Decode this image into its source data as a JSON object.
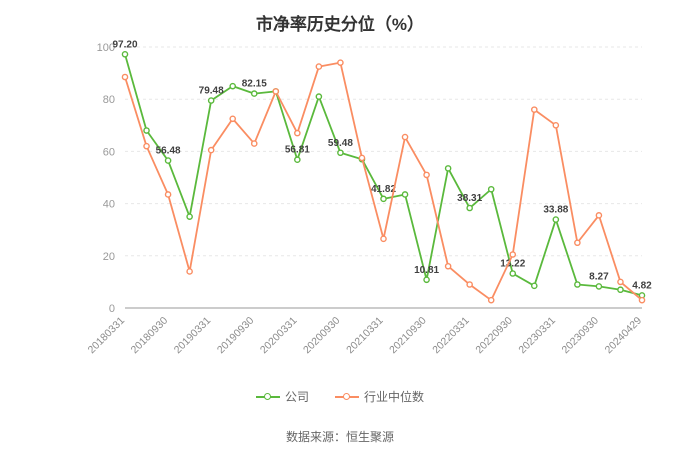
{
  "chart_data": {
    "type": "line",
    "title": "市净率历史分位（%）",
    "xlabel": "",
    "ylabel": "",
    "ylim": [
      0,
      100
    ],
    "y_ticks": [
      0,
      20,
      40,
      60,
      80,
      100
    ],
    "grid": true,
    "legend_position": "bottom",
    "categories": [
      "20180331",
      "",
      "20180930",
      "",
      "20190331",
      "",
      "20190930",
      "",
      "20200331",
      "",
      "20200930",
      "",
      "20210331",
      "",
      "20210930",
      "",
      "20220331",
      "",
      "20220930",
      "",
      "20230331",
      "",
      "20230930",
      "",
      "20240429"
    ],
    "series": [
      {
        "name": "公司",
        "color": "#5ab93c",
        "values": [
          97.2,
          68,
          56.48,
          35,
          79.48,
          85,
          82.15,
          83,
          56.81,
          81,
          59.48,
          57,
          41.82,
          43.5,
          10.81,
          53.5,
          38.31,
          45.5,
          13.22,
          8.5,
          33.88,
          9,
          8.27,
          7,
          4.82
        ],
        "labels": [
          "97.20",
          null,
          "56.48",
          null,
          "79.48",
          null,
          "82.15",
          null,
          "56.81",
          null,
          "59.48",
          null,
          "41.82",
          null,
          "10.81",
          null,
          "38.31",
          null,
          "13.22",
          null,
          "33.88",
          null,
          "8.27",
          null,
          "4.82"
        ]
      },
      {
        "name": "行业中位数",
        "color": "#fa8d62",
        "values": [
          88.5,
          62,
          43.5,
          14,
          60.5,
          72.5,
          63,
          83,
          67,
          92.5,
          94,
          57.5,
          26.5,
          65.5,
          51,
          16,
          9,
          3,
          20.5,
          76,
          70,
          25,
          35.5,
          10,
          3
        ],
        "labels": []
      }
    ]
  },
  "footer": {
    "source": "数据来源：恒生聚源"
  }
}
